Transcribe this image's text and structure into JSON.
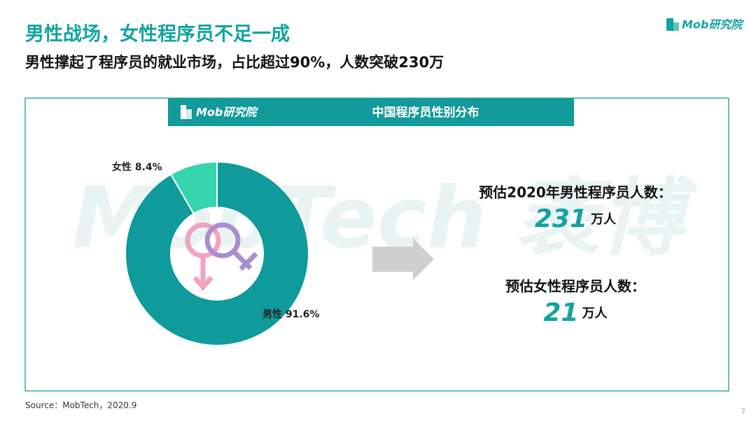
{
  "header": {
    "title": "男性战场，女性程序员不足一成",
    "subtitle": "男性撑起了程序员的就业市场，占比超过90%，人数突破230万",
    "logo": "Mob研究院"
  },
  "watermark": "MobTech 袤博",
  "chart_data": {
    "type": "donut",
    "title": "中国程序员性别分布",
    "logo": "Mob研究院",
    "categories": [
      "男性",
      "女性"
    ],
    "values": [
      91.6,
      8.4
    ],
    "value_labels": [
      "91.6%",
      "8.4%"
    ],
    "colors": [
      "#0f9a9b",
      "#35d6ae"
    ]
  },
  "estimates": [
    {
      "label": "预估2020年男性程序员人数：",
      "value": 231,
      "unit": "万人"
    },
    {
      "label": "预估女性程序员人数：",
      "value": 21,
      "unit": "万人"
    }
  ],
  "footer": {
    "source": "Source：MobTech，2020.9",
    "page_number": 7
  }
}
